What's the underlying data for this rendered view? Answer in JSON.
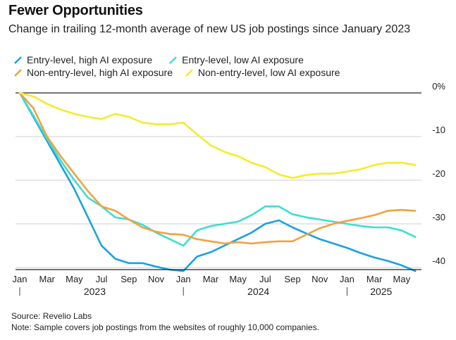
{
  "title": "Fewer Opportunities",
  "subtitle": "Change in trailing 12-month average of new US job postings since January 2023",
  "footer": {
    "source": "Source: Revelio Labs",
    "note": "Note: Sample covers job postings from the websites of roughly 10,000 companies."
  },
  "chart_data": {
    "type": "line",
    "title": "Fewer Opportunities",
    "subtitle": "Change in trailing 12-month average of new US job postings since January 2023",
    "xlabel": "",
    "ylabel": "",
    "ylim": [
      -40.5,
      2
    ],
    "yticks": [
      0,
      -10,
      -20,
      -30,
      -40
    ],
    "ytick_labels": [
      "0%",
      "-10",
      "-20",
      "-30",
      "-40"
    ],
    "x": [
      "2023-01",
      "2023-02",
      "2023-03",
      "2023-04",
      "2023-05",
      "2023-06",
      "2023-07",
      "2023-08",
      "2023-09",
      "2023-10",
      "2023-11",
      "2023-12",
      "2024-01",
      "2024-02",
      "2024-03",
      "2024-04",
      "2024-05",
      "2024-06",
      "2024-07",
      "2024-08",
      "2024-09",
      "2024-10",
      "2024-11",
      "2024-12",
      "2025-01",
      "2025-02",
      "2025-03",
      "2025-04",
      "2025-05",
      "2025-06"
    ],
    "xtick_labels": [
      "Jan",
      "Mar",
      "May",
      "Jul",
      "Sep",
      "Nov",
      "Jan",
      "Mar",
      "May",
      "Jul",
      "Sep",
      "Nov",
      "Jan",
      "Mar",
      "May"
    ],
    "year_labels": [
      "2023",
      "2024",
      "2025"
    ],
    "grid": "horizontal",
    "legend_position": "top",
    "series": [
      {
        "name": "Entry-level, high AI exposure",
        "color": "#1ba1e2",
        "values": [
          0,
          -5.5,
          -11,
          -16.5,
          -22,
          -28.5,
          -35,
          -38,
          -39,
          -39,
          -39.8,
          -40.5,
          -40.8,
          -37.5,
          -36.5,
          -35,
          -33.5,
          -32,
          -30,
          -29.2,
          -30.8,
          -32.2,
          -33.5,
          -34.5,
          -35.5,
          -36.7,
          -37.7,
          -38.5,
          -39.5,
          -40.8
        ]
      },
      {
        "name": "Entry-level, low AI exposure",
        "color": "#3ae0d2",
        "values": [
          0,
          -5.2,
          -10.5,
          -15.5,
          -20,
          -24,
          -26,
          -28.5,
          -29,
          -30.2,
          -32,
          -33.5,
          -35,
          -31.5,
          -30.5,
          -30,
          -29.5,
          -28,
          -26,
          -26,
          -27.8,
          -28.5,
          -29,
          -29.5,
          -30,
          -30.5,
          -30.8,
          -30.8,
          -31.5,
          -33
        ]
      },
      {
        "name": "Non-entry-level, high AI exposure",
        "color": "#f4a040",
        "values": [
          0,
          -3.5,
          -10,
          -14.5,
          -18.5,
          -22.5,
          -26,
          -27,
          -29,
          -30.8,
          -31.8,
          -32.3,
          -32.5,
          -33.5,
          -34,
          -34.5,
          -34.2,
          -34.5,
          -34.2,
          -34,
          -34,
          -32.5,
          -31,
          -30,
          -29.3,
          -28.7,
          -28,
          -27,
          -26.8,
          -27
        ]
      },
      {
        "name": "Non-entry-level, low AI exposure",
        "color": "#f4ec2a",
        "values": [
          0,
          -0.8,
          -2.5,
          -3.8,
          -4.8,
          -5.5,
          -6,
          -4.8,
          -5.5,
          -6.8,
          -7.2,
          -7.2,
          -6.8,
          -9.5,
          -12,
          -13.5,
          -14.5,
          -16,
          -17,
          -18.7,
          -19.5,
          -18.8,
          -18.5,
          -18.5,
          -18,
          -17.5,
          -16.5,
          -16,
          -16,
          -16.5
        ]
      }
    ]
  }
}
